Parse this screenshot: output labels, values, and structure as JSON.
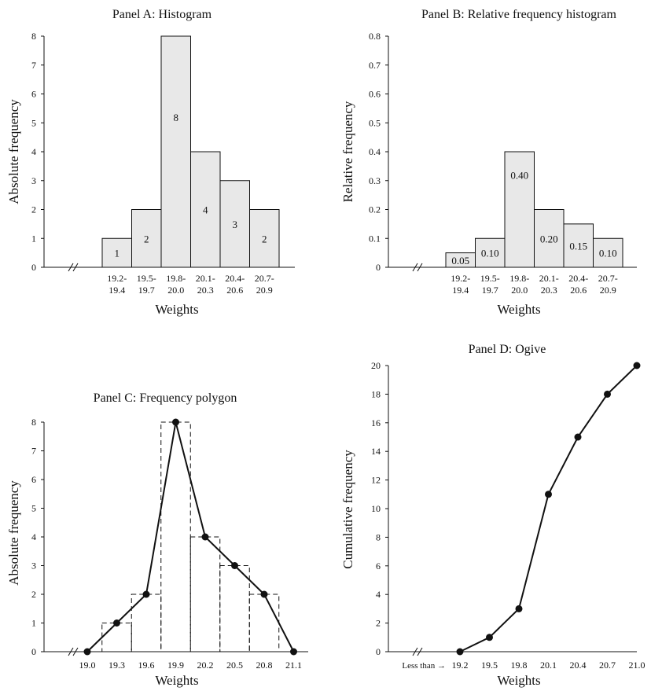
{
  "chart_data": [
    {
      "id": "A",
      "type": "bar",
      "title": "Panel A: Histogram",
      "xlabel": "Weights",
      "ylabel": "Absolute frequency",
      "categories": [
        "19.2-\n19.4",
        "19.5-\n19.7",
        "19.8-\n20.0",
        "20.1-\n20.3",
        "20.4-\n20.6",
        "20.7-\n20.9"
      ],
      "values": [
        1,
        2,
        8,
        4,
        3,
        2
      ],
      "bar_labels": [
        "1",
        "2",
        "8",
        "4",
        "3",
        "2"
      ],
      "ylim": [
        0,
        8
      ],
      "yticks": [
        "0",
        "1",
        "2",
        "3",
        "4",
        "5",
        "6",
        "7",
        "8"
      ],
      "grid": false
    },
    {
      "id": "B",
      "type": "bar",
      "title": "Panel B: Relative frequency histogram",
      "xlabel": "Weights",
      "ylabel": "Relative frequency",
      "categories": [
        "19.2-\n19.4",
        "19.5-\n19.7",
        "19.8-\n20.0",
        "20.1-\n20.3",
        "20.4-\n20.6",
        "20.7-\n20.9"
      ],
      "values": [
        0.05,
        0.1,
        0.4,
        0.2,
        0.15,
        0.1
      ],
      "bar_labels": [
        "0.05",
        "0.10",
        "0.40",
        "0.20",
        "0.15",
        "0.10"
      ],
      "ylim": [
        0,
        0.8
      ],
      "yticks": [
        "0",
        "0.1",
        "0.2",
        "0.3",
        "0.4",
        "0.5",
        "0.6",
        "0.7",
        "0.8"
      ],
      "grid": false
    },
    {
      "id": "C",
      "type": "line",
      "title": "Panel C: Frequency polygon",
      "xlabel": "Weights",
      "ylabel": "Absolute frequency",
      "x": [
        "19.0",
        "19.3",
        "19.6",
        "19.9",
        "20.2",
        "20.5",
        "20.8",
        "21.1"
      ],
      "values": [
        0,
        1,
        2,
        8,
        4,
        3,
        2,
        0
      ],
      "dashed_bars": [
        1,
        2,
        8,
        4,
        3,
        2
      ],
      "ylim": [
        0,
        8
      ],
      "yticks": [
        "0",
        "1",
        "2",
        "3",
        "4",
        "5",
        "6",
        "7",
        "8"
      ],
      "grid": false
    },
    {
      "id": "D",
      "type": "line",
      "title": "Panel D: Ogive",
      "xlabel": "Weights",
      "ylabel": "Cumulative frequency",
      "x_prefix": "Less than →",
      "x": [
        "19.2",
        "19.5",
        "19.8",
        "20.1",
        "20.4",
        "20.7",
        "21.0"
      ],
      "values": [
        0,
        1,
        3,
        11,
        15,
        18,
        20
      ],
      "ylim": [
        0,
        20
      ],
      "yticks": [
        "0",
        "2",
        "4",
        "6",
        "8",
        "10",
        "12",
        "14",
        "16",
        "18",
        "20"
      ],
      "grid": false
    }
  ]
}
